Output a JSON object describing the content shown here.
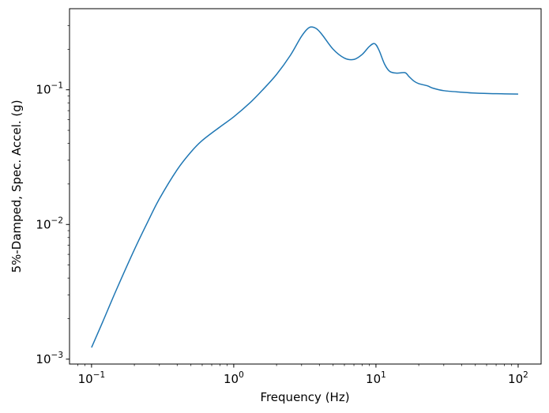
{
  "chart_data": {
    "type": "line",
    "title": "",
    "xlabel": "Frequency (Hz)",
    "ylabel": "5%-Damped, Spec. Accel. (g)",
    "xscale": "log",
    "yscale": "log",
    "xlim": [
      0.07,
      145
    ],
    "ylim": [
      0.00092,
      0.4
    ],
    "grid": false,
    "legend": "none",
    "x_ticks": [
      {
        "value": 0.1,
        "base": "10",
        "exp": "−1"
      },
      {
        "value": 1,
        "base": "10",
        "exp": "0"
      },
      {
        "value": 10,
        "base": "10",
        "exp": "1"
      },
      {
        "value": 100,
        "base": "10",
        "exp": "2"
      }
    ],
    "y_ticks": [
      {
        "value": 0.001,
        "base": "10",
        "exp": "−3"
      },
      {
        "value": 0.01,
        "base": "10",
        "exp": "−2"
      },
      {
        "value": 0.1,
        "base": "10",
        "exp": "−1"
      }
    ],
    "series": [
      {
        "color": "#1f77b4",
        "x": [
          0.1,
          0.12,
          0.15,
          0.2,
          0.25,
          0.3,
          0.4,
          0.5,
          0.6,
          0.8,
          1.0,
          1.3,
          1.6,
          2.0,
          2.5,
          3.0,
          3.4,
          3.8,
          4.2,
          5.0,
          6.0,
          7.0,
          8.0,
          9.0,
          9.8,
          10.5,
          11.5,
          12.5,
          14.0,
          16.0,
          17.0,
          18.5,
          20.0,
          23.0,
          25.0,
          30.0,
          40.0,
          50.0,
          70.0,
          100.0
        ],
        "y": [
          0.00122,
          0.0019,
          0.0033,
          0.0065,
          0.0106,
          0.0155,
          0.0255,
          0.0345,
          0.042,
          0.053,
          0.063,
          0.08,
          0.1,
          0.13,
          0.18,
          0.25,
          0.29,
          0.285,
          0.255,
          0.2,
          0.172,
          0.168,
          0.183,
          0.21,
          0.22,
          0.197,
          0.155,
          0.137,
          0.133,
          0.134,
          0.126,
          0.116,
          0.111,
          0.107,
          0.103,
          0.0985,
          0.096,
          0.0945,
          0.0935,
          0.093
        ]
      }
    ]
  }
}
